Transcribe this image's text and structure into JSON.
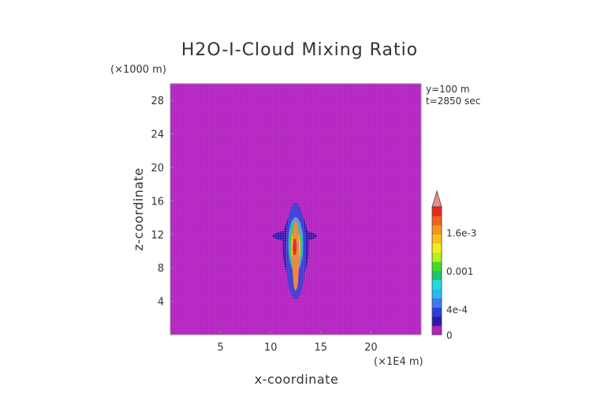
{
  "chart_data": {
    "type": "heatmap",
    "title": "H2O-I-Cloud Mixing Ratio",
    "xlabel": "x-coordinate",
    "ylabel": "z-coordinate",
    "x_unit": "(×1E4 m)",
    "y_unit": "(×1000 m)",
    "xlim": [
      0,
      25
    ],
    "ylim": [
      0,
      30
    ],
    "x_ticks": [
      5,
      10,
      15,
      20
    ],
    "y_ticks": [
      4,
      8,
      12,
      16,
      20,
      24,
      28
    ],
    "annotations": [
      "y=100 m",
      "t=2850 sec"
    ],
    "colorbar": {
      "tick_values": [
        0,
        0.0004,
        0.001,
        0.0016
      ],
      "tick_labels": [
        "0",
        "4e-4",
        "0.001",
        "1.6e-3"
      ],
      "min": 0,
      "max": 0.002,
      "colors": [
        "#b322c0",
        "#2a1aa8",
        "#2f3fd6",
        "#3f79f0",
        "#28b8f2",
        "#21dbe0",
        "#1ec46a",
        "#3fdc2a",
        "#b8ef1f",
        "#f2ee20",
        "#f7c21e",
        "#f7941e",
        "#f2611e",
        "#e8281e",
        "#f08a8a"
      ],
      "extend": "max"
    },
    "background_color": "#b322c0",
    "cloud_regions": [
      {
        "level": 0.0001,
        "xc": 12.4,
        "zc": 11.8,
        "w": 4.4,
        "h": 1.3
      },
      {
        "level": 0.0002,
        "xc": 12.5,
        "zc": 10.5,
        "w": 2.6,
        "h": 8.5
      },
      {
        "level": 0.0004,
        "xc": 12.5,
        "zc": 10.0,
        "w": 2.0,
        "h": 11.6
      },
      {
        "level": 0.0007,
        "xc": 12.5,
        "zc": 10.8,
        "w": 1.5,
        "h": 6.5
      },
      {
        "level": 0.001,
        "xc": 12.5,
        "zc": 10.6,
        "w": 1.2,
        "h": 5.5
      },
      {
        "level": 0.0013,
        "xc": 12.5,
        "zc": 10.4,
        "w": 0.9,
        "h": 4.5
      },
      {
        "level": 0.0016,
        "xc": 12.5,
        "zc": 9.5,
        "w": 0.7,
        "h": 8.5
      },
      {
        "level": 0.0019,
        "xc": 12.4,
        "zc": 10.5,
        "w": 0.4,
        "h": 2.0
      }
    ]
  }
}
